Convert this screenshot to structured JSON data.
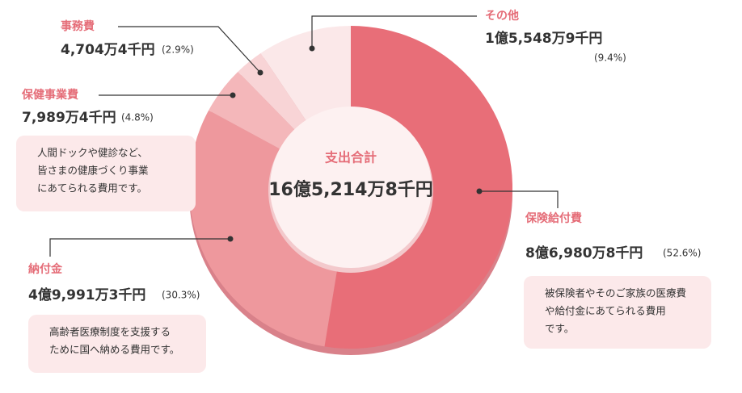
{
  "chart_data": {
    "type": "donut",
    "center_title": "支出合計",
    "center_total": "16億5,214万8千円",
    "categories": [
      "保険給付費",
      "納付金",
      "保健事業費",
      "事務費",
      "その他"
    ],
    "values": [
      52.6,
      30.3,
      4.8,
      2.9,
      9.4
    ],
    "value_labels": [
      "(52.6%)",
      "(30.3%)",
      "(4.8%)",
      "(2.9%)",
      "(9.4%)"
    ],
    "amounts": [
      "8億6,980万8千円",
      "4億9,991万3千円",
      "7,989万4千円",
      "4,704万4千円",
      "1億5,548万9千円"
    ],
    "notes": [
      [
        "被保険者やそのご家族の医療費",
        "や給付金にあてられる費用",
        "です。"
      ],
      [
        "高齢者医療制度を支援する",
        "ために国へ納める費用です。"
      ],
      [
        "人間ドックや健診など、",
        "皆さまの健康づくり事業",
        "にあてられる費用です。"
      ],
      null,
      null
    ],
    "colors": [
      "#e86e78",
      "#ee989d",
      "#f4b7ba",
      "#f8d4d6",
      "#fbe8e9"
    ]
  }
}
